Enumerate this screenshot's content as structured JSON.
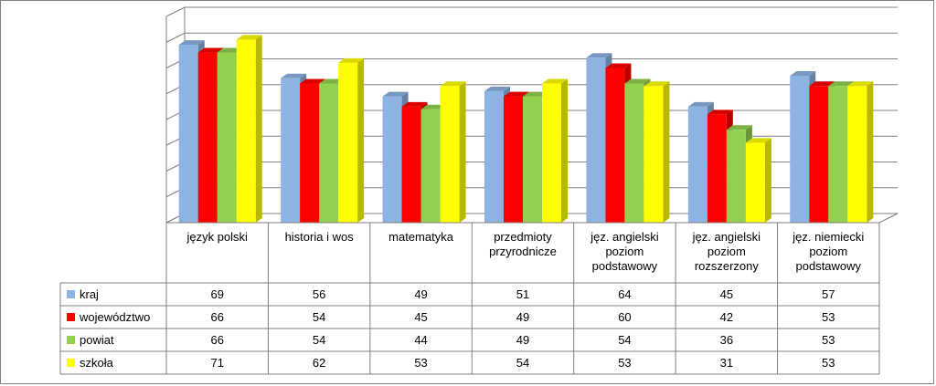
{
  "chart_data": {
    "type": "bar",
    "title": "",
    "xlabel": "",
    "ylabel": "",
    "ylim": [
      0,
      80
    ],
    "grid": true,
    "legend": "data-table",
    "categories": [
      [
        "język polski"
      ],
      [
        "historia i wos"
      ],
      [
        "matematyka"
      ],
      [
        "przedmioty",
        "przyrodnicze"
      ],
      [
        "jęz. angielski",
        "poziom",
        "podstawowy"
      ],
      [
        "jęz. angielski",
        "poziom",
        "rozszerzony"
      ],
      [
        "jęz. niemiecki",
        "poziom",
        "podstawowy"
      ]
    ],
    "series": [
      {
        "name": "kraj",
        "color": "#8db3e2",
        "values": [
          69,
          56,
          49,
          51,
          64,
          45,
          57
        ]
      },
      {
        "name": "województwo",
        "color": "#ff0000",
        "values": [
          66,
          54,
          45,
          49,
          60,
          42,
          53
        ]
      },
      {
        "name": "powiat",
        "color": "#92d050",
        "values": [
          66,
          54,
          44,
          49,
          54,
          36,
          53
        ]
      },
      {
        "name": "szkoła",
        "color": "#ffff00",
        "values": [
          71,
          62,
          53,
          54,
          53,
          31,
          53
        ]
      }
    ]
  }
}
